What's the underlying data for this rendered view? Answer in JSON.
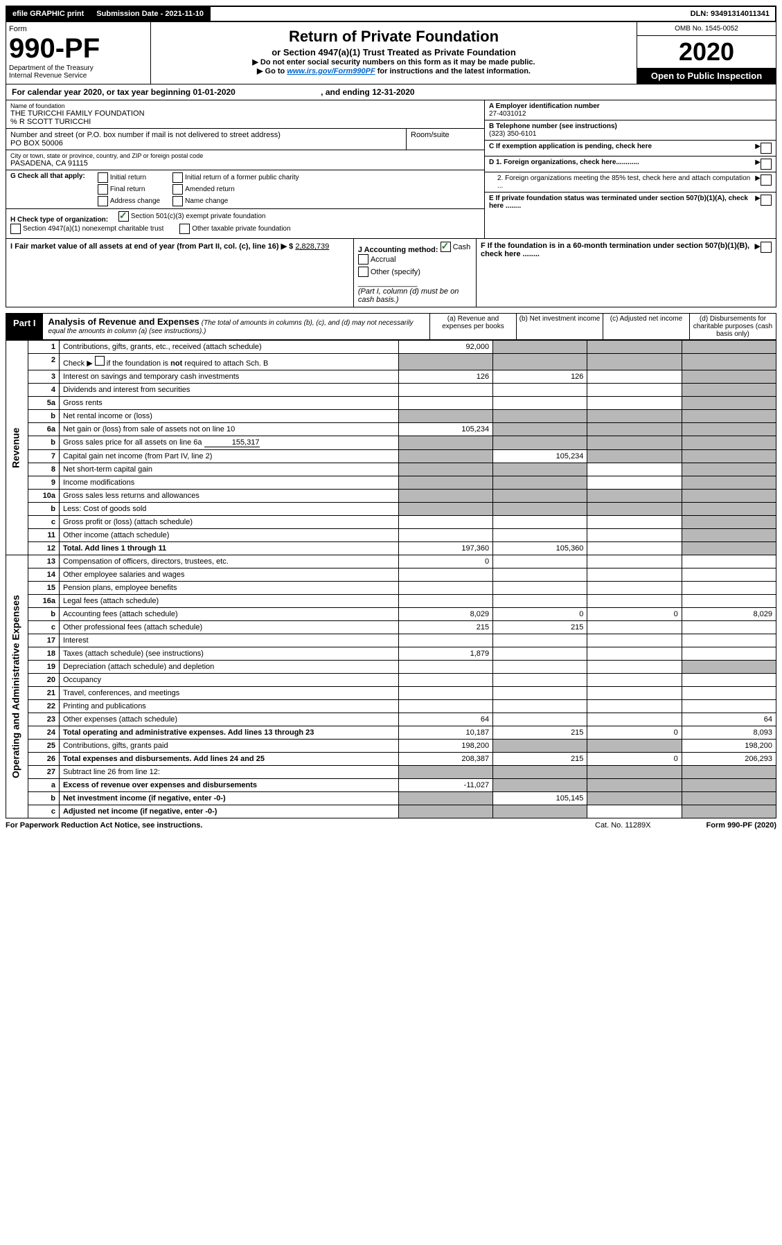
{
  "topbar": {
    "efile": "efile GRAPHIC print",
    "submission_label": "Submission Date - 2021-11-10",
    "dln": "DLN: 93491314011341"
  },
  "header": {
    "form_label": "Form",
    "form_number": "990-PF",
    "dept1": "Department of the Treasury",
    "dept2": "Internal Revenue Service",
    "title": "Return of Private Foundation",
    "subtitle": "or Section 4947(a)(1) Trust Treated as Private Foundation",
    "note1": "▶ Do not enter social security numbers on this form as it may be made public.",
    "note2_pre": "▶ Go to ",
    "note2_link": "www.irs.gov/Form990PF",
    "note2_post": " for instructions and the latest information.",
    "omb": "OMB No. 1545-0052",
    "year": "2020",
    "open": "Open to Public Inspection"
  },
  "calendar": {
    "text_pre": "For calendar year 2020, or tax year beginning ",
    "begin": "01-01-2020",
    "text_mid": " , and ending ",
    "end": "12-31-2020"
  },
  "entity": {
    "name_lbl": "Name of foundation",
    "name": "THE TURICCHI FAMILY FOUNDATION",
    "care_of": "% R SCOTT TURICCHI",
    "addr_lbl": "Number and street (or P.O. box number if mail is not delivered to street address)",
    "addr": "PO BOX 50006",
    "room_lbl": "Room/suite",
    "city_lbl": "City or town, state or province, country, and ZIP or foreign postal code",
    "city": "PASADENA, CA  91115",
    "a_lbl": "A Employer identification number",
    "ein": "27-4031012",
    "b_lbl": "B Telephone number (see instructions)",
    "phone": "(323) 350-6101",
    "c_lbl": "C If exemption application is pending, check here",
    "d1": "D 1. Foreign organizations, check here............",
    "d2": "2. Foreign organizations meeting the 85% test, check here and attach computation ...",
    "e_lbl": "E  If private foundation status was terminated under section 507(b)(1)(A), check here ........",
    "f_lbl": "F  If the foundation is in a 60-month termination under section 507(b)(1)(B), check here ........"
  },
  "g": {
    "label": "G Check all that apply:",
    "opts": [
      "Initial return",
      "Final return",
      "Address change",
      "Initial return of a former public charity",
      "Amended return",
      "Name change"
    ]
  },
  "h": {
    "label": "H Check type of organization:",
    "o1": "Section 501(c)(3) exempt private foundation",
    "o2": "Section 4947(a)(1) nonexempt charitable trust",
    "o3": "Other taxable private foundation"
  },
  "i": {
    "label": "I Fair market value of all assets at end of year (from Part II, col. (c), line 16) ▶ $",
    "value": "2,828,739"
  },
  "j": {
    "label": "J Accounting method:",
    "o1": "Cash",
    "o2": "Accrual",
    "o3": "Other (specify)",
    "note": "(Part I, column (d) must be on cash basis.)"
  },
  "part1": {
    "tag": "Part I",
    "title": "Analysis of Revenue and Expenses",
    "title_note": "(The total of amounts in columns (b), (c), and (d) may not necessarily equal the amounts in column (a) (see instructions).)",
    "col_a": "(a) Revenue and expenses per books",
    "col_b": "(b) Net investment income",
    "col_c": "(c) Adjusted net income",
    "col_d": "(d) Disbursements for charitable purposes (cash basis only)",
    "side_rev": "Revenue",
    "side_exp": "Operating and Administrative Expenses"
  },
  "rows": {
    "r1": {
      "n": "1",
      "t": "Contributions, gifts, grants, etc., received (attach schedule)",
      "a": "92,000"
    },
    "r2": {
      "n": "2",
      "t": "Check ▶ ☐ if the foundation is not required to attach Sch. B"
    },
    "r3": {
      "n": "3",
      "t": "Interest on savings and temporary cash investments",
      "a": "126",
      "b": "126"
    },
    "r4": {
      "n": "4",
      "t": "Dividends and interest from securities"
    },
    "r5a": {
      "n": "5a",
      "t": "Gross rents"
    },
    "r5b": {
      "n": "b",
      "t": "Net rental income or (loss)"
    },
    "r6a": {
      "n": "6a",
      "t": "Net gain or (loss) from sale of assets not on line 10",
      "a": "105,234"
    },
    "r6b": {
      "n": "b",
      "t": "Gross sales price for all assets on line 6a",
      "v": "155,317"
    },
    "r7": {
      "n": "7",
      "t": "Capital gain net income (from Part IV, line 2)",
      "b": "105,234"
    },
    "r8": {
      "n": "8",
      "t": "Net short-term capital gain"
    },
    "r9": {
      "n": "9",
      "t": "Income modifications"
    },
    "r10a": {
      "n": "10a",
      "t": "Gross sales less returns and allowances"
    },
    "r10b": {
      "n": "b",
      "t": "Less: Cost of goods sold"
    },
    "r10c": {
      "n": "c",
      "t": "Gross profit or (loss) (attach schedule)"
    },
    "r11": {
      "n": "11",
      "t": "Other income (attach schedule)"
    },
    "r12": {
      "n": "12",
      "t": "Total. Add lines 1 through 11",
      "a": "197,360",
      "b": "105,360"
    },
    "r13": {
      "n": "13",
      "t": "Compensation of officers, directors, trustees, etc.",
      "a": "0"
    },
    "r14": {
      "n": "14",
      "t": "Other employee salaries and wages"
    },
    "r15": {
      "n": "15",
      "t": "Pension plans, employee benefits"
    },
    "r16a": {
      "n": "16a",
      "t": "Legal fees (attach schedule)"
    },
    "r16b": {
      "n": "b",
      "t": "Accounting fees (attach schedule)",
      "a": "8,029",
      "b": "0",
      "c": "0",
      "d": "8,029"
    },
    "r16c": {
      "n": "c",
      "t": "Other professional fees (attach schedule)",
      "a": "215",
      "b": "215"
    },
    "r17": {
      "n": "17",
      "t": "Interest"
    },
    "r18": {
      "n": "18",
      "t": "Taxes (attach schedule) (see instructions)",
      "a": "1,879"
    },
    "r19": {
      "n": "19",
      "t": "Depreciation (attach schedule) and depletion"
    },
    "r20": {
      "n": "20",
      "t": "Occupancy"
    },
    "r21": {
      "n": "21",
      "t": "Travel, conferences, and meetings"
    },
    "r22": {
      "n": "22",
      "t": "Printing and publications"
    },
    "r23": {
      "n": "23",
      "t": "Other expenses (attach schedule)",
      "a": "64",
      "d": "64"
    },
    "r24": {
      "n": "24",
      "t": "Total operating and administrative expenses. Add lines 13 through 23",
      "a": "10,187",
      "b": "215",
      "c": "0",
      "d": "8,093"
    },
    "r25": {
      "n": "25",
      "t": "Contributions, gifts, grants paid",
      "a": "198,200",
      "d": "198,200"
    },
    "r26": {
      "n": "26",
      "t": "Total expenses and disbursements. Add lines 24 and 25",
      "a": "208,387",
      "b": "215",
      "c": "0",
      "d": "206,293"
    },
    "r27": {
      "n": "27",
      "t": "Subtract line 26 from line 12:"
    },
    "r27a": {
      "n": "a",
      "t": "Excess of revenue over expenses and disbursements",
      "a": "-11,027"
    },
    "r27b": {
      "n": "b",
      "t": "Net investment income (if negative, enter -0-)",
      "b": "105,145"
    },
    "r27c": {
      "n": "c",
      "t": "Adjusted net income (if negative, enter -0-)"
    }
  },
  "footer": {
    "left": "For Paperwork Reduction Act Notice, see instructions.",
    "mid": "Cat. No. 11289X",
    "right": "Form 990-PF (2020)"
  },
  "colors": {
    "grey": "#b8b8b8",
    "link": "#0066cc",
    "check": "#2a7a2a"
  }
}
